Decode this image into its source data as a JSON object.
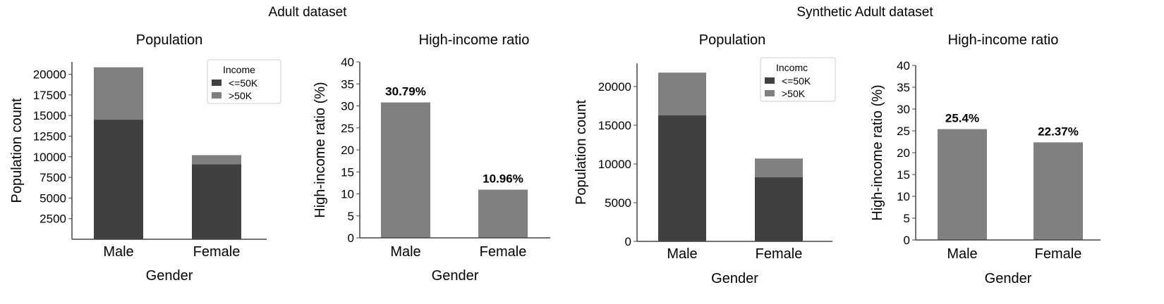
{
  "figure": {
    "groups": [
      {
        "title": "Adult dataset"
      },
      {
        "title": "Synthetic Adult dataset"
      }
    ]
  },
  "chart_data": [
    {
      "type": "bar",
      "stacked": true,
      "title": "Population",
      "xlabel": "Gender",
      "ylabel": "Population count",
      "categories": [
        "Male",
        "Female"
      ],
      "yticks": [
        2500,
        5000,
        7500,
        10000,
        12500,
        15000,
        17500,
        20000
      ],
      "ylim": [
        0,
        21500
      ],
      "series": [
        {
          "name": "<=50K",
          "values": [
            14500,
            9100
          ]
        },
        {
          "name": ">50K",
          "values": [
            6350,
            1100
          ]
        }
      ],
      "legend": {
        "title": "Income",
        "position": "top-right"
      },
      "colors": {
        "<=50K": "#404040",
        ">50K": "#808080"
      }
    },
    {
      "type": "bar",
      "title": "High-income ratio",
      "xlabel": "Gender",
      "ylabel": "High-income ratio (%)",
      "categories": [
        "Male",
        "Female"
      ],
      "values": [
        30.79,
        10.96
      ],
      "data_labels": [
        "30.79%",
        "10.96%"
      ],
      "yticks": [
        0,
        5,
        10,
        15,
        20,
        25,
        30,
        35,
        40
      ],
      "ylim": [
        0,
        40
      ],
      "colors": {
        "bar": "#808080"
      }
    },
    {
      "type": "bar",
      "stacked": true,
      "title": "Population",
      "xlabel": "Gender",
      "ylabel": "Population count",
      "categories": [
        "Male",
        "Female"
      ],
      "yticks": [
        0,
        5000,
        10000,
        15000,
        20000
      ],
      "ylim": [
        0,
        23000
      ],
      "series": [
        {
          "name": "<=50K",
          "values": [
            16300,
            8300
          ]
        },
        {
          "name": ">50K",
          "values": [
            5500,
            2400
          ]
        }
      ],
      "legend": {
        "title": "Incomc",
        "position": "top-right"
      },
      "colors": {
        "<=50K": "#404040",
        ">50K": "#808080"
      }
    },
    {
      "type": "bar",
      "title": "High-income ratio",
      "xlabel": "Gender",
      "ylabel": "High-income ratio (%)",
      "categories": [
        "Male",
        "Female"
      ],
      "values": [
        25.4,
        22.37
      ],
      "data_labels": [
        "25.4%",
        "22.37%"
      ],
      "yticks": [
        0,
        5,
        10,
        15,
        20,
        25,
        30,
        35,
        40
      ],
      "ylim": [
        0,
        40
      ],
      "colors": {
        "bar": "#808080"
      }
    }
  ]
}
